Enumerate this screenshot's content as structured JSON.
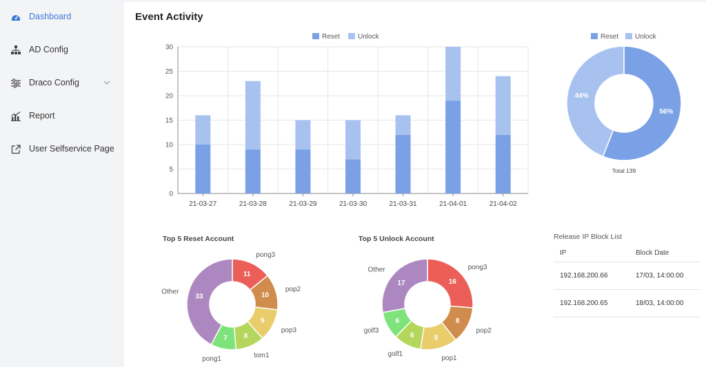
{
  "sidebar": {
    "items": [
      {
        "label": "Dashboard",
        "icon": "dashboard-icon",
        "active": true
      },
      {
        "label": "AD Config",
        "icon": "sitemap-icon",
        "active": false
      },
      {
        "label": "Draco Config",
        "icon": "sliders-icon",
        "active": false
      },
      {
        "label": "Report",
        "icon": "bar-chart-icon",
        "active": false
      },
      {
        "label": "User Selfservice Page",
        "icon": "external-link-icon",
        "active": false
      }
    ]
  },
  "page": {
    "title": "Event Activity"
  },
  "colors": {
    "reset": "#7aa1e6",
    "unlock": "#a8c2f0",
    "accent": "#3a78d8"
  },
  "chart_data": [
    {
      "type": "bar",
      "stacked": true,
      "categories": [
        "21-03-27",
        "21-03-28",
        "21-03-29",
        "21-03-30",
        "21-03-31",
        "21-04-01",
        "21-04-02"
      ],
      "series": [
        {
          "name": "Reset",
          "values": [
            10,
            9,
            9,
            7,
            12,
            19,
            12
          ]
        },
        {
          "name": "Unlock",
          "values": [
            6,
            14,
            6,
            8,
            4,
            11,
            12
          ]
        }
      ],
      "ylim": [
        0,
        30
      ],
      "yticks": [
        "0",
        "5",
        "10",
        "15",
        "20",
        "25",
        "30"
      ],
      "grid": true,
      "legend": "top"
    },
    {
      "type": "pie",
      "donut": true,
      "legend": [
        "Reset",
        "Unlock"
      ],
      "slices": [
        {
          "name": "Reset",
          "value": 56,
          "label": "56%"
        },
        {
          "name": "Unlock",
          "value": 44,
          "label": "44%"
        }
      ],
      "footer": "Total 139"
    },
    {
      "type": "pie",
      "donut": true,
      "title": "Top 5 Reset Account",
      "slices": [
        {
          "name": "pong3",
          "value": 11,
          "label": "11",
          "color": "#ec5f59"
        },
        {
          "name": "pop2",
          "value": 10,
          "label": "10",
          "color": "#d08c4c"
        },
        {
          "name": "pop3",
          "value": 9,
          "label": "9",
          "color": "#e8cd6a"
        },
        {
          "name": "tom1",
          "value": 8,
          "label": "8",
          "color": "#b5d65c"
        },
        {
          "name": "pong1",
          "value": 7,
          "label": "7",
          "color": "#7fe37c"
        },
        {
          "name": "Other",
          "value": 33,
          "label": "33",
          "color": "#ad88c0"
        }
      ]
    },
    {
      "type": "pie",
      "donut": true,
      "title": "Top 5 Unlock Account",
      "slices": [
        {
          "name": "pong3",
          "value": 16,
          "label": "16",
          "color": "#ec5f59"
        },
        {
          "name": "pop2",
          "value": 8,
          "label": "8",
          "color": "#d08c4c"
        },
        {
          "name": "pop1",
          "value": 8,
          "label": "8",
          "color": "#e8cd6a"
        },
        {
          "name": "golf1",
          "value": 6,
          "label": "6",
          "color": "#b5d65c"
        },
        {
          "name": "golf3",
          "value": 6,
          "label": "6",
          "color": "#7fe37c"
        },
        {
          "name": "Other",
          "value": 17,
          "label": "17",
          "color": "#ad88c0"
        }
      ]
    }
  ],
  "ip_block": {
    "title": "Release IP Block List",
    "headers": [
      "IP",
      "Block Date"
    ],
    "rows": [
      [
        "192.168.200.66",
        "17/03, 14:00:00"
      ],
      [
        "192.168.200.65",
        "18/03, 14:00:00"
      ]
    ]
  }
}
